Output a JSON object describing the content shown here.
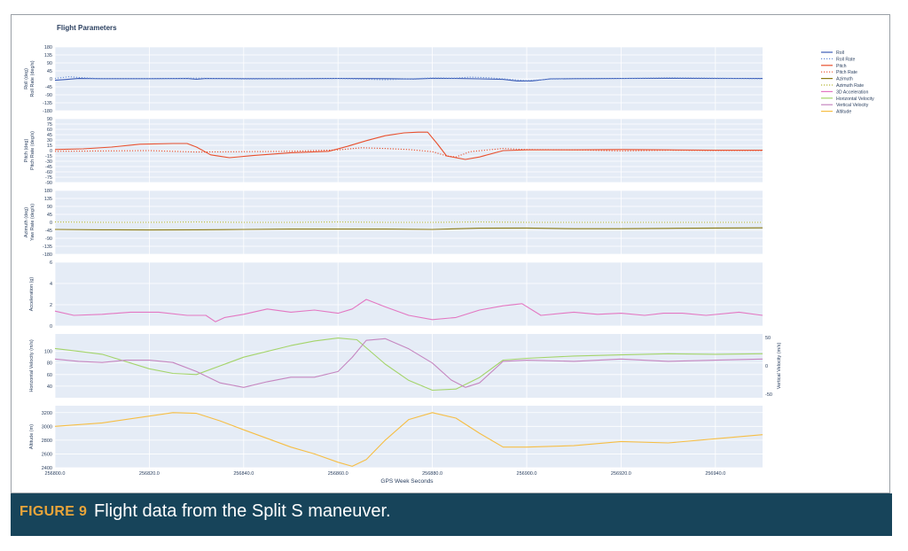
{
  "figure": {
    "label": "FIGURE 9",
    "caption": "Flight data from the Split S maneuver.",
    "colors": {
      "caption_bg": "#17445a",
      "label": "#e9a53a",
      "panel_bg": "#e5ecf6"
    }
  },
  "chart_data": {
    "type": "line",
    "title": "Flight Parameters",
    "xlabel": "GPS Week Seconds",
    "xlim": [
      256800,
      256950
    ],
    "x_ticks": [
      256800,
      256820,
      256840,
      256860,
      256880,
      256900,
      256920,
      256940
    ],
    "x_tick_labels": [
      "256800.0",
      "256820.0",
      "256840.0",
      "256860.0",
      "256880.0",
      "256900.0",
      "256920.0",
      "256940.0"
    ],
    "legend": {
      "position": "top-right",
      "entries": [
        {
          "name": "Roll",
          "color": "#3b5bb5",
          "dash": "solid"
        },
        {
          "name": "Roll Rate",
          "color": "#6b8fd6",
          "dash": "dot"
        },
        {
          "name": "Pitch",
          "color": "#e8502e",
          "dash": "solid"
        },
        {
          "name": "Pitch Rate",
          "color": "#e8502e",
          "dash": "dot"
        },
        {
          "name": "Azimuth",
          "color": "#8a7a14",
          "dash": "solid"
        },
        {
          "name": "Azimuth Rate",
          "color": "#b6b83a",
          "dash": "dot"
        },
        {
          "name": "3D Acceleration",
          "color": "#e377c2",
          "dash": "solid"
        },
        {
          "name": "Horizontal Velocity",
          "color": "#a4d46a",
          "dash": "solid"
        },
        {
          "name": "Vertical Velocity",
          "color": "#c586c0",
          "dash": "solid"
        },
        {
          "name": "Altitude",
          "color": "#f6be45",
          "dash": "solid"
        }
      ]
    },
    "panels": [
      {
        "id": "roll",
        "ylabel": [
          "Roll (deg)",
          "Roll Rate (deg/s)"
        ],
        "ylim": [
          -180,
          180
        ],
        "yticks": [
          -180,
          -135,
          -90,
          -45,
          0,
          45,
          90,
          135,
          180
        ],
        "series": [
          {
            "name": "Roll",
            "color": "#3b5bb5",
            "dash": "solid",
            "x": [
              256800,
              256802,
              256805,
              256810,
              256820,
              256828,
              256830,
              256832,
              256840,
              256850,
              256860,
              256870,
              256876,
              256880,
              256885,
              256890,
              256895,
              256898,
              256901,
              256905,
              256910,
              256920,
              256930,
              256940,
              256950
            ],
            "y": [
              -8,
              -4,
              2,
              1,
              1,
              2,
              -2,
              2,
              1,
              1,
              2,
              1,
              -1,
              3,
              2,
              0,
              -3,
              -12,
              -12,
              0,
              1,
              2,
              3,
              2,
              2
            ]
          },
          {
            "name": "Roll Rate",
            "color": "#6b8fd6",
            "dash": "dot",
            "x": [
              256800,
              256803,
              256806,
              256810,
              256820,
              256830,
              256840,
              256850,
              256860,
              256870,
              256880,
              256885,
              256888,
              256892,
              256896,
              256900,
              256905,
              256910,
              256920,
              256930,
              256940,
              256950
            ],
            "y": [
              2,
              12,
              6,
              0,
              0,
              4,
              -1,
              0,
              2,
              -5,
              5,
              4,
              10,
              6,
              -2,
              -10,
              -2,
              0,
              2,
              6,
              4,
              0
            ]
          }
        ]
      },
      {
        "id": "pitch",
        "ylabel": [
          "Pitch (deg)",
          "Pitch Rate (deg/s)"
        ],
        "ylim": [
          -90,
          90
        ],
        "yticks": [
          -90,
          -75,
          -60,
          -45,
          -30,
          -15,
          0,
          15,
          30,
          45,
          60,
          75,
          90
        ],
        "series": [
          {
            "name": "Pitch",
            "color": "#e8502e",
            "dash": "solid",
            "x": [
              256800,
              256806,
              256812,
              256818,
              256825,
              256828,
              256830,
              256833,
              256837,
              256842,
              256850,
              256858,
              256862,
              256866,
              256870,
              256874,
              256877,
              256879,
              256881,
              256883,
              256887,
              256890,
              256895,
              256900,
              256910,
              256920,
              256930,
              256940,
              256950
            ],
            "y": [
              3,
              5,
              10,
              18,
              20,
              20,
              10,
              -12,
              -20,
              -14,
              -6,
              -2,
              12,
              28,
              42,
              50,
              52,
              52,
              20,
              -15,
              -25,
              -18,
              0,
              2,
              2,
              3,
              2,
              1,
              1
            ]
          },
          {
            "name": "Pitch Rate",
            "color": "#e8502e",
            "dash": "dot",
            "x": [
              256800,
              256810,
              256820,
              256830,
              256840,
              256850,
              256860,
              256865,
              256870,
              256875,
              256880,
              256883,
              256885,
              256888,
              256895,
              256900,
              256910,
              256920,
              256930,
              256940,
              256950
            ],
            "y": [
              -2,
              -1,
              0,
              -4,
              -3,
              -2,
              2,
              8,
              6,
              3,
              -3,
              -15,
              -18,
              -3,
              6,
              3,
              2,
              -1,
              1,
              0,
              0
            ]
          }
        ]
      },
      {
        "id": "azimuth",
        "ylabel": [
          "Azimuth (deg)",
          "Yaw Rate (deg/s)"
        ],
        "ylim": [
          -180,
          180
        ],
        "yticks": [
          -180,
          -135,
          -90,
          -45,
          0,
          45,
          90,
          135,
          180
        ],
        "series": [
          {
            "name": "Azimuth",
            "color": "#8a7a14",
            "dash": "solid",
            "x": [
              256800,
              256810,
              256820,
              256830,
              256840,
              256850,
              256860,
              256870,
              256880,
              256890,
              256900,
              256910,
              256920,
              256930,
              256940,
              256950
            ],
            "y": [
              -40,
              -42,
              -43,
              -42,
              -40,
              -38,
              -38,
              -38,
              -40,
              -33,
              -32,
              -36,
              -36,
              -34,
              -32,
              -31
            ]
          },
          {
            "name": "Azimuth Rate",
            "color": "#b6b83a",
            "dash": "dot",
            "x": [
              256800,
              256810,
              256820,
              256830,
              256840,
              256850,
              256860,
              256870,
              256880,
              256890,
              256900,
              256910,
              256920,
              256930,
              256940,
              256950
            ],
            "y": [
              2,
              0,
              0,
              2,
              0,
              0,
              2,
              0,
              0,
              2,
              0,
              0,
              0,
              0,
              0,
              0
            ]
          }
        ]
      },
      {
        "id": "acceleration",
        "ylabel": [
          "Acceleration (g)"
        ],
        "ylim": [
          0,
          6
        ],
        "yticks": [
          0,
          2,
          4,
          6
        ],
        "series": [
          {
            "name": "3D Acceleration",
            "color": "#e377c2",
            "dash": "solid",
            "x": [
              256800,
              256804,
              256810,
              256816,
              256822,
              256828,
              256832,
              256834,
              256836,
              256840,
              256845,
              256850,
              256855,
              256860,
              256863,
              256866,
              256870,
              256875,
              256880,
              256885,
              256890,
              256895,
              256899,
              256903,
              256910,
              256915,
              256920,
              256925,
              256929,
              256933,
              256938,
              256945,
              256950
            ],
            "y": [
              1.4,
              1.0,
              1.1,
              1.3,
              1.3,
              1.0,
              1.0,
              0.4,
              0.8,
              1.1,
              1.6,
              1.3,
              1.5,
              1.2,
              1.6,
              2.5,
              1.8,
              1.0,
              0.6,
              0.8,
              1.5,
              1.9,
              2.1,
              1.0,
              1.3,
              1.1,
              1.2,
              1.0,
              1.2,
              1.2,
              1.0,
              1.3,
              1.0
            ]
          }
        ]
      },
      {
        "id": "velocity",
        "ylabel": [
          "Horizontal Velocity (m/s)"
        ],
        "ylabel_right": "Vertical Velocity (m/s)",
        "ylim": [
          20,
          130
        ],
        "yticks": [
          40,
          60,
          80,
          100
        ],
        "ylim_right": [
          -50,
          50
        ],
        "yticks_right": [
          -50,
          0,
          50
        ],
        "series": [
          {
            "name": "Horizontal Velocity",
            "color": "#a4d46a",
            "dash": "solid",
            "axis": "left",
            "x": [
              256800,
              256805,
              256810,
              256820,
              256825,
              256830,
              256835,
              256840,
              256850,
              256855,
              256860,
              256864,
              256870,
              256875,
              256880,
              256885,
              256890,
              256895,
              256900,
              256910,
              256920,
              256930,
              256940,
              256950
            ],
            "y": [
              105,
              100,
              95,
              70,
              62,
              60,
              75,
              90,
              110,
              118,
              123,
              120,
              78,
              50,
              33,
              35,
              55,
              85,
              88,
              92,
              94,
              96,
              95,
              96
            ]
          },
          {
            "name": "Vertical Velocity",
            "color": "#c586c0",
            "dash": "solid",
            "axis": "right",
            "x": [
              256800,
              256805,
              256810,
              256815,
              256820,
              256825,
              256830,
              256835,
              256840,
              256845,
              256850,
              256855,
              256860,
              256863,
              256866,
              256870,
              256875,
              256880,
              256884,
              256887,
              256890,
              256895,
              256900,
              256910,
              256920,
              256930,
              256940,
              256950
            ],
            "y": [
              12,
              8,
              6,
              10,
              10,
              6,
              -10,
              -30,
              -38,
              -28,
              -20,
              -20,
              -10,
              15,
              45,
              48,
              30,
              5,
              -25,
              -38,
              -30,
              8,
              10,
              8,
              12,
              8,
              10,
              12
            ]
          }
        ]
      },
      {
        "id": "altitude",
        "ylabel": [
          "Altitude (m)"
        ],
        "ylim": [
          2400,
          3300
        ],
        "yticks": [
          2400,
          2600,
          2800,
          3000,
          3200
        ],
        "series": [
          {
            "name": "Altitude",
            "color": "#f6be45",
            "dash": "solid",
            "x": [
              256800,
              256810,
              256820,
              256825,
              256830,
              256835,
              256840,
              256850,
              256855,
              256860,
              256863,
              256866,
              256870,
              256875,
              256880,
              256885,
              256890,
              256895,
              256900,
              256910,
              256920,
              256930,
              256940,
              256950
            ],
            "y": [
              3000,
              3050,
              3150,
              3200,
              3190,
              3080,
              2950,
              2700,
              2600,
              2480,
              2420,
              2520,
              2800,
              3100,
              3200,
              3120,
              2900,
              2700,
              2700,
              2720,
              2780,
              2760,
              2820,
              2880
            ]
          }
        ]
      }
    ]
  }
}
